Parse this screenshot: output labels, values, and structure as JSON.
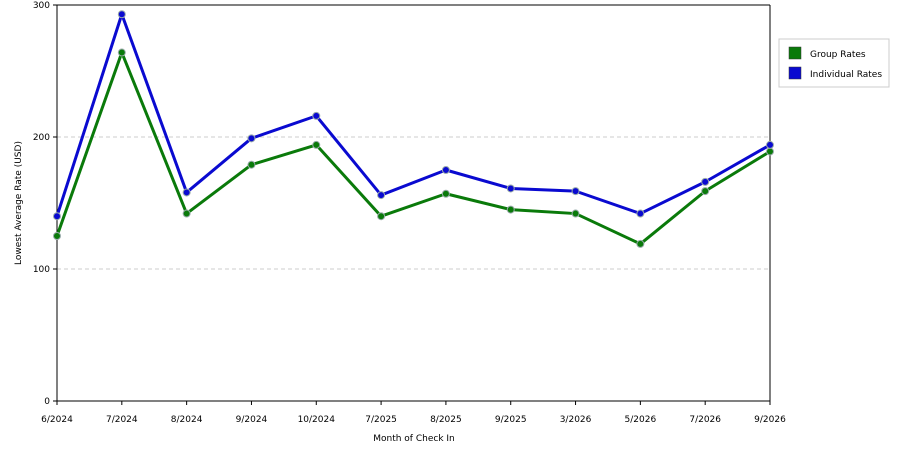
{
  "chart_data": {
    "type": "line",
    "title": "",
    "xlabel": "Month of Check In",
    "ylabel": "Lowest Average Rate (USD)",
    "categories": [
      "6/2024",
      "7/2024",
      "8/2024",
      "9/2024",
      "10/2024",
      "7/2025",
      "8/2025",
      "9/2025",
      "3/2026",
      "5/2026",
      "7/2026",
      "9/2026"
    ],
    "ylim": [
      0,
      300
    ],
    "yticks": [
      "0",
      "100",
      "200",
      "300"
    ],
    "grid": "horizontal dashed",
    "legend_position": "right",
    "series": [
      {
        "name": "Group Rates",
        "color": "#0a7a0a",
        "values": [
          125,
          264,
          142,
          179,
          194,
          140,
          157,
          145,
          142,
          119,
          159,
          189
        ]
      },
      {
        "name": "Individual Rates",
        "color": "#0a0ad0",
        "values": [
          140,
          293,
          158,
          199,
          216,
          156,
          175,
          161,
          159,
          142,
          166,
          194
        ]
      }
    ]
  }
}
